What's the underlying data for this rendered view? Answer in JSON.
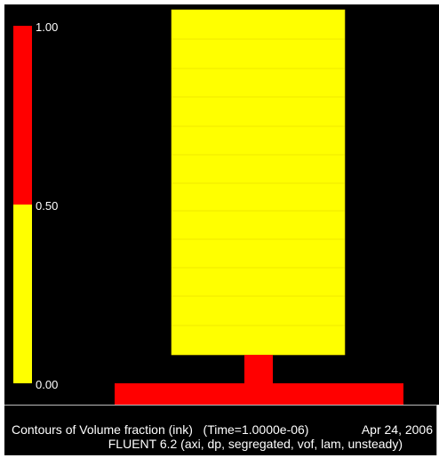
{
  "colorbar": {
    "labels": [
      "1.00",
      "0.50",
      "0.00"
    ],
    "colors": {
      "high": "#ff0000",
      "low": "#ffff00"
    }
  },
  "contour": {
    "field": "Volume fraction (ink)",
    "regions": [
      {
        "region": "bottom-channel",
        "volume_fraction": 1.0,
        "color": "#ff0000"
      },
      {
        "region": "neck",
        "volume_fraction": 1.0,
        "color": "#ff0000"
      },
      {
        "region": "chamber",
        "volume_fraction": 0.0,
        "color": "#ffff00"
      }
    ]
  },
  "footer": {
    "title": "Contours of Volume fraction (ink)   (Time=1.0000e-06)",
    "date": "Apr 24, 2006",
    "version": "FLUENT 6.2 (axi, dp, segregated, vof, lam, unsteady)"
  }
}
